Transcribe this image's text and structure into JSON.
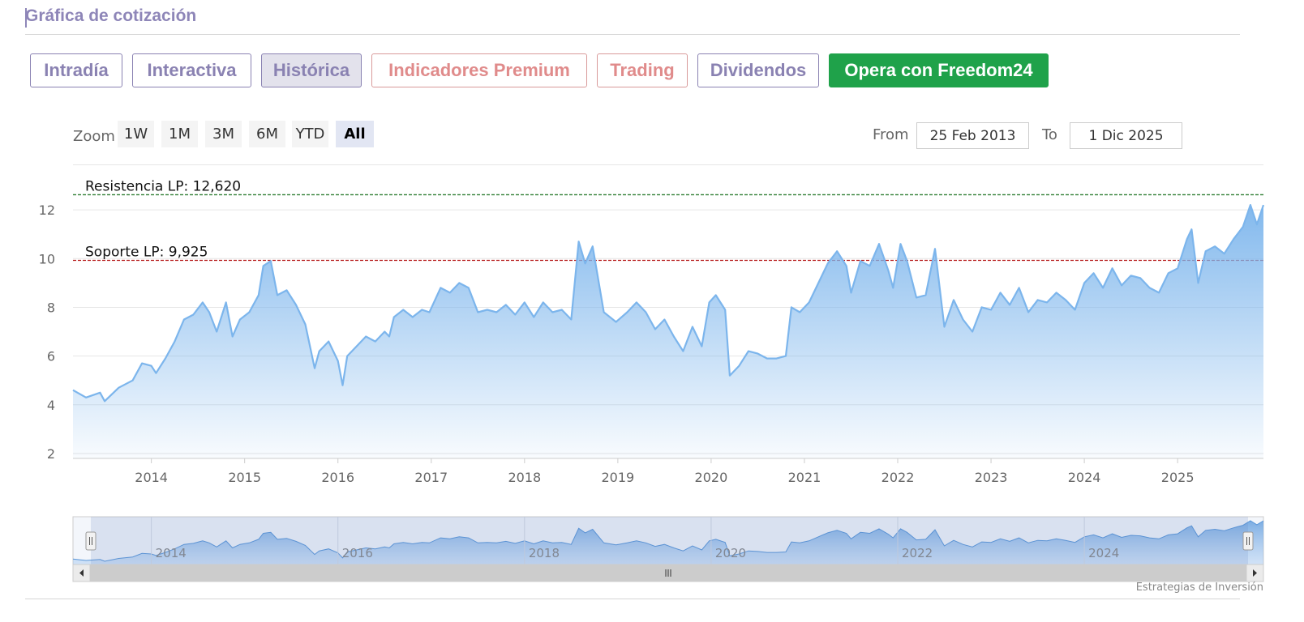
{
  "title": "Gráfica de cotización",
  "tabs": [
    {
      "label": "Intradía"
    },
    {
      "label": "Interactiva"
    },
    {
      "label": "Histórica"
    },
    {
      "label": "Indicadores Premium"
    },
    {
      "label": "Trading"
    },
    {
      "label": "Dividendos"
    },
    {
      "label": "Opera con Freedom24"
    }
  ],
  "zoom": {
    "label": "Zoom",
    "buttons": [
      "1W",
      "1M",
      "3M",
      "6M",
      "YTD",
      "All"
    ],
    "selected": "All"
  },
  "range": {
    "from_label": "From",
    "from_value": "25 Feb 2013",
    "to_label": "To",
    "to_value": "1 Dic 2025"
  },
  "credit": "Estrategias de Inversión",
  "chart_data": {
    "type": "area",
    "xlim": [
      2013.16,
      2025.92
    ],
    "ylim": [
      1.8,
      12.9
    ],
    "y_ticks": [
      2,
      4,
      6,
      8,
      10,
      12
    ],
    "x_ticks": [
      2014,
      2015,
      2016,
      2017,
      2018,
      2019,
      2020,
      2021,
      2022,
      2023,
      2024,
      2025
    ],
    "x_tick_labels": [
      "2014",
      "2015",
      "2016",
      "2017",
      "2018",
      "2019",
      "2020",
      "2021",
      "2022",
      "2023",
      "2024",
      "2025"
    ],
    "grid": true,
    "reference_lines": [
      {
        "label": "Resistencia LP: 12,620",
        "value": 12.62,
        "color": "#2e7d32"
      },
      {
        "label": "Soporte LP: 9,925",
        "value": 9.925,
        "color": "#b71c1c"
      }
    ],
    "series": [
      {
        "color": "#7cb5ec",
        "points": [
          [
            2013.16,
            4.6
          ],
          [
            2013.3,
            4.3
          ],
          [
            2013.45,
            4.5
          ],
          [
            2013.5,
            4.15
          ],
          [
            2013.65,
            4.7
          ],
          [
            2013.8,
            5.0
          ],
          [
            2013.9,
            5.7
          ],
          [
            2014.0,
            5.6
          ],
          [
            2014.05,
            5.3
          ],
          [
            2014.15,
            5.9
          ],
          [
            2014.25,
            6.6
          ],
          [
            2014.35,
            7.5
          ],
          [
            2014.45,
            7.7
          ],
          [
            2014.55,
            8.2
          ],
          [
            2014.62,
            7.8
          ],
          [
            2014.7,
            7.0
          ],
          [
            2014.8,
            8.2
          ],
          [
            2014.87,
            6.8
          ],
          [
            2014.95,
            7.5
          ],
          [
            2015.05,
            7.8
          ],
          [
            2015.15,
            8.5
          ],
          [
            2015.2,
            9.7
          ],
          [
            2015.28,
            9.9
          ],
          [
            2015.35,
            8.5
          ],
          [
            2015.45,
            8.7
          ],
          [
            2015.55,
            8.1
          ],
          [
            2015.65,
            7.3
          ],
          [
            2015.75,
            5.5
          ],
          [
            2015.8,
            6.2
          ],
          [
            2015.9,
            6.6
          ],
          [
            2016.0,
            5.8
          ],
          [
            2016.05,
            4.8
          ],
          [
            2016.1,
            6.0
          ],
          [
            2016.2,
            6.4
          ],
          [
            2016.3,
            6.8
          ],
          [
            2016.4,
            6.6
          ],
          [
            2016.5,
            7.0
          ],
          [
            2016.55,
            6.8
          ],
          [
            2016.6,
            7.6
          ],
          [
            2016.7,
            7.9
          ],
          [
            2016.8,
            7.6
          ],
          [
            2016.9,
            7.9
          ],
          [
            2016.98,
            7.8
          ],
          [
            2017.1,
            8.8
          ],
          [
            2017.2,
            8.6
          ],
          [
            2017.3,
            9.0
          ],
          [
            2017.4,
            8.8
          ],
          [
            2017.5,
            7.8
          ],
          [
            2017.6,
            7.9
          ],
          [
            2017.7,
            7.8
          ],
          [
            2017.8,
            8.1
          ],
          [
            2017.9,
            7.7
          ],
          [
            2018.0,
            8.2
          ],
          [
            2018.1,
            7.6
          ],
          [
            2018.2,
            8.2
          ],
          [
            2018.3,
            7.8
          ],
          [
            2018.4,
            7.9
          ],
          [
            2018.5,
            7.5
          ],
          [
            2018.58,
            10.7
          ],
          [
            2018.65,
            9.8
          ],
          [
            2018.73,
            10.5
          ],
          [
            2018.85,
            7.8
          ],
          [
            2018.98,
            7.4
          ],
          [
            2019.1,
            7.8
          ],
          [
            2019.2,
            8.2
          ],
          [
            2019.3,
            7.8
          ],
          [
            2019.4,
            7.1
          ],
          [
            2019.5,
            7.5
          ],
          [
            2019.6,
            6.8
          ],
          [
            2019.7,
            6.2
          ],
          [
            2019.8,
            7.2
          ],
          [
            2019.9,
            6.4
          ],
          [
            2019.98,
            8.2
          ],
          [
            2020.05,
            8.5
          ],
          [
            2020.15,
            7.9
          ],
          [
            2020.2,
            5.2
          ],
          [
            2020.3,
            5.6
          ],
          [
            2020.4,
            6.2
          ],
          [
            2020.5,
            6.1
          ],
          [
            2020.6,
            5.9
          ],
          [
            2020.7,
            5.9
          ],
          [
            2020.8,
            6.0
          ],
          [
            2020.86,
            8.0
          ],
          [
            2020.95,
            7.8
          ],
          [
            2021.05,
            8.2
          ],
          [
            2021.15,
            9.0
          ],
          [
            2021.25,
            9.8
          ],
          [
            2021.35,
            10.3
          ],
          [
            2021.45,
            9.7
          ],
          [
            2021.5,
            8.6
          ],
          [
            2021.6,
            9.9
          ],
          [
            2021.7,
            9.7
          ],
          [
            2021.8,
            10.6
          ],
          [
            2021.9,
            9.5
          ],
          [
            2021.95,
            8.8
          ],
          [
            2022.03,
            10.6
          ],
          [
            2022.1,
            9.9
          ],
          [
            2022.2,
            8.4
          ],
          [
            2022.3,
            8.5
          ],
          [
            2022.4,
            10.4
          ],
          [
            2022.5,
            7.2
          ],
          [
            2022.6,
            8.3
          ],
          [
            2022.7,
            7.5
          ],
          [
            2022.8,
            7.0
          ],
          [
            2022.9,
            8.0
          ],
          [
            2023.0,
            7.9
          ],
          [
            2023.1,
            8.6
          ],
          [
            2023.2,
            8.1
          ],
          [
            2023.3,
            8.8
          ],
          [
            2023.4,
            7.8
          ],
          [
            2023.5,
            8.3
          ],
          [
            2023.6,
            8.2
          ],
          [
            2023.7,
            8.6
          ],
          [
            2023.8,
            8.3
          ],
          [
            2023.9,
            7.9
          ],
          [
            2024.0,
            9.0
          ],
          [
            2024.1,
            9.4
          ],
          [
            2024.2,
            8.8
          ],
          [
            2024.3,
            9.6
          ],
          [
            2024.4,
            8.9
          ],
          [
            2024.5,
            9.3
          ],
          [
            2024.6,
            9.2
          ],
          [
            2024.7,
            8.8
          ],
          [
            2024.8,
            8.6
          ],
          [
            2024.9,
            9.4
          ],
          [
            2025.0,
            9.6
          ],
          [
            2025.1,
            10.8
          ],
          [
            2025.15,
            11.2
          ],
          [
            2025.22,
            9.0
          ],
          [
            2025.3,
            10.3
          ],
          [
            2025.4,
            10.5
          ],
          [
            2025.5,
            10.2
          ],
          [
            2025.6,
            10.8
          ],
          [
            2025.7,
            11.3
          ],
          [
            2025.78,
            12.2
          ],
          [
            2025.85,
            11.4
          ],
          [
            2025.92,
            12.2
          ]
        ]
      }
    ],
    "navigator": {
      "x_tick_labels": [
        "2014",
        "2016",
        "2018",
        "2020",
        "2022",
        "2024"
      ],
      "ylim": [
        3.5,
        13.0
      ]
    }
  }
}
